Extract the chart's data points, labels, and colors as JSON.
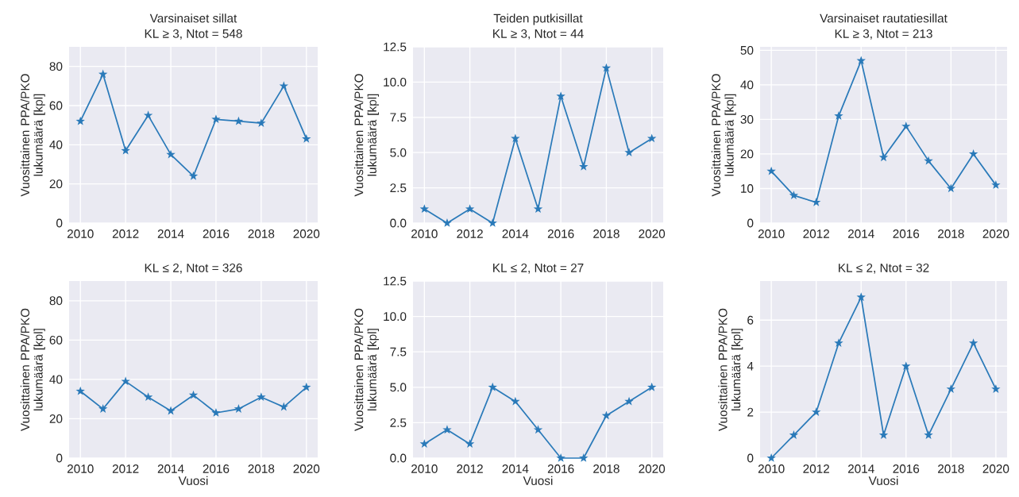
{
  "chart_data": [
    {
      "type": "line",
      "title": "Varsinaiset sillat",
      "subtitle": "KL ≥ 3, Ntot = 548",
      "ylabel": "Vuosittainen PPA/PKO lukumäärä [kpl]",
      "x": [
        2010,
        2011,
        2012,
        2013,
        2014,
        2015,
        2016,
        2017,
        2018,
        2019,
        2020
      ],
      "values": [
        52,
        76,
        37,
        55,
        35,
        24,
        53,
        52,
        51,
        70,
        43
      ],
      "color": "#2a7ab9",
      "xlim": [
        2009.5,
        2020.5
      ],
      "ylim": [
        0,
        90
      ],
      "xticks": [
        2010,
        2012,
        2014,
        2016,
        2018,
        2020
      ],
      "yticks": [
        0,
        20,
        40,
        60,
        80
      ],
      "grid": true,
      "marker": "star"
    },
    {
      "type": "line",
      "title": "Teiden putkisillat",
      "subtitle": "KL ≥ 3, Ntot = 44",
      "ylabel": "Vuosittainen PPA/PKO lukumäärä [kpl]",
      "x": [
        2010,
        2011,
        2012,
        2013,
        2014,
        2015,
        2016,
        2017,
        2018,
        2019,
        2020
      ],
      "values": [
        1,
        0,
        1,
        0,
        6,
        1,
        9,
        4,
        11,
        5,
        6
      ],
      "color": "#2a7ab9",
      "xlim": [
        2009.5,
        2020.5
      ],
      "ylim": [
        0,
        12.5
      ],
      "xticks": [
        2010,
        2012,
        2014,
        2016,
        2018,
        2020
      ],
      "yticks": [
        {
          "value": 0,
          "label": "0.0"
        },
        {
          "value": 2.5,
          "label": "2.5"
        },
        {
          "value": 5,
          "label": "5.0"
        },
        {
          "value": 7.5,
          "label": "7.5"
        },
        {
          "value": 10,
          "label": "10.0"
        },
        {
          "value": 12.5,
          "label": "12.5"
        }
      ],
      "grid": true,
      "marker": "star"
    },
    {
      "type": "line",
      "title": "Varsinaiset rautatiesillat",
      "subtitle": "KL ≥ 3, Ntot = 213",
      "ylabel": "Vuosittainen PPA/PKO lukumäärä [kpl]",
      "x": [
        2010,
        2011,
        2012,
        2013,
        2014,
        2015,
        2016,
        2017,
        2018,
        2019,
        2020
      ],
      "values": [
        15,
        8,
        6,
        31,
        47,
        19,
        28,
        18,
        10,
        20,
        11
      ],
      "color": "#2a7ab9",
      "xlim": [
        2009.5,
        2020.5
      ],
      "ylim": [
        0,
        51
      ],
      "xticks": [
        2010,
        2012,
        2014,
        2016,
        2018,
        2020
      ],
      "yticks": [
        0,
        10,
        20,
        30,
        40,
        50
      ],
      "grid": true,
      "marker": "star"
    },
    {
      "type": "line",
      "title": "KL ≤ 2, Ntot = 326",
      "xlabel": "Vuosi",
      "ylabel": "Vuosittainen PPA/PKO lukumäärä [kpl]",
      "x": [
        2010,
        2011,
        2012,
        2013,
        2014,
        2015,
        2016,
        2017,
        2018,
        2019,
        2020
      ],
      "values": [
        34,
        25,
        39,
        31,
        24,
        32,
        23,
        25,
        31,
        26,
        36
      ],
      "color": "#2a7ab9",
      "xlim": [
        2009.5,
        2020.5
      ],
      "ylim": [
        0,
        90
      ],
      "xticks": [
        2010,
        2012,
        2014,
        2016,
        2018,
        2020
      ],
      "yticks": [
        0,
        20,
        40,
        60,
        80
      ],
      "grid": true,
      "marker": "star"
    },
    {
      "type": "line",
      "title": "KL ≤ 2, Ntot = 27",
      "xlabel": "Vuosi",
      "ylabel": "Vuosittainen PPA/PKO lukumäärä [kpl]",
      "x": [
        2010,
        2011,
        2012,
        2013,
        2014,
        2015,
        2016,
        2017,
        2018,
        2019,
        2020
      ],
      "values": [
        1,
        2,
        1,
        5,
        4,
        2,
        0,
        0,
        3,
        4,
        5
      ],
      "color": "#2a7ab9",
      "xlim": [
        2009.5,
        2020.5
      ],
      "ylim": [
        0,
        12.5
      ],
      "xticks": [
        2010,
        2012,
        2014,
        2016,
        2018,
        2020
      ],
      "yticks": [
        {
          "value": 0,
          "label": "0.0"
        },
        {
          "value": 2.5,
          "label": "2.5"
        },
        {
          "value": 5,
          "label": "5.0"
        },
        {
          "value": 7.5,
          "label": "7.5"
        },
        {
          "value": 10,
          "label": "10.0"
        },
        {
          "value": 12.5,
          "label": "12.5"
        }
      ],
      "grid": true,
      "marker": "star"
    },
    {
      "type": "line",
      "title": "KL ≤ 2, Ntot = 32",
      "xlabel": "Vuosi",
      "ylabel": "Vuosittainen PPA/PKO lukumäärä [kpl]",
      "x": [
        2010,
        2011,
        2012,
        2013,
        2014,
        2015,
        2016,
        2017,
        2018,
        2019,
        2020
      ],
      "values": [
        0,
        1,
        2,
        5,
        7,
        1,
        4,
        1,
        3,
        5,
        3
      ],
      "color": "#2a7ab9",
      "xlim": [
        2009.5,
        2020.5
      ],
      "ylim": [
        0,
        7.7
      ],
      "xticks": [
        2010,
        2012,
        2014,
        2016,
        2018,
        2020
      ],
      "yticks": [
        0,
        2,
        4,
        6
      ],
      "grid": true,
      "marker": "star"
    }
  ]
}
